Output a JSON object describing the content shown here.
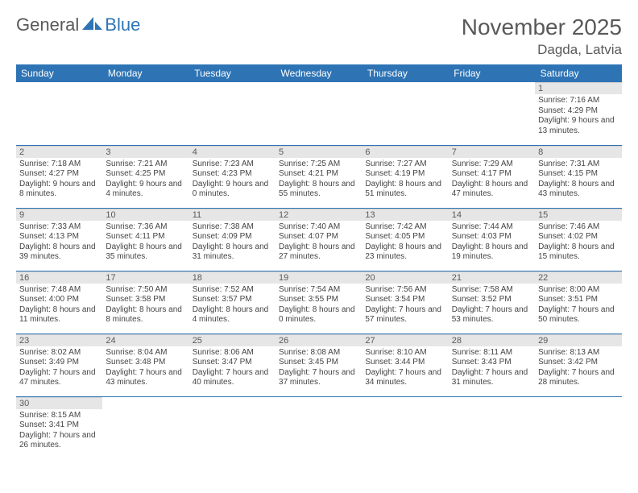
{
  "logo": {
    "part1": "General",
    "part2": "Blue"
  },
  "title": "November 2025",
  "location": "Dagda, Latvia",
  "colors": {
    "header_bg": "#2e74b5",
    "header_fg": "#ffffff",
    "daynum_bg": "#e6e6e6",
    "text": "#595959",
    "cell_border": "#2e74b5"
  },
  "weekdays": [
    "Sunday",
    "Monday",
    "Tuesday",
    "Wednesday",
    "Thursday",
    "Friday",
    "Saturday"
  ],
  "weeks": [
    [
      null,
      null,
      null,
      null,
      null,
      null,
      {
        "n": "1",
        "sr": "Sunrise: 7:16 AM",
        "ss": "Sunset: 4:29 PM",
        "dl": "Daylight: 9 hours and 13 minutes."
      }
    ],
    [
      {
        "n": "2",
        "sr": "Sunrise: 7:18 AM",
        "ss": "Sunset: 4:27 PM",
        "dl": "Daylight: 9 hours and 8 minutes."
      },
      {
        "n": "3",
        "sr": "Sunrise: 7:21 AM",
        "ss": "Sunset: 4:25 PM",
        "dl": "Daylight: 9 hours and 4 minutes."
      },
      {
        "n": "4",
        "sr": "Sunrise: 7:23 AM",
        "ss": "Sunset: 4:23 PM",
        "dl": "Daylight: 9 hours and 0 minutes."
      },
      {
        "n": "5",
        "sr": "Sunrise: 7:25 AM",
        "ss": "Sunset: 4:21 PM",
        "dl": "Daylight: 8 hours and 55 minutes."
      },
      {
        "n": "6",
        "sr": "Sunrise: 7:27 AM",
        "ss": "Sunset: 4:19 PM",
        "dl": "Daylight: 8 hours and 51 minutes."
      },
      {
        "n": "7",
        "sr": "Sunrise: 7:29 AM",
        "ss": "Sunset: 4:17 PM",
        "dl": "Daylight: 8 hours and 47 minutes."
      },
      {
        "n": "8",
        "sr": "Sunrise: 7:31 AM",
        "ss": "Sunset: 4:15 PM",
        "dl": "Daylight: 8 hours and 43 minutes."
      }
    ],
    [
      {
        "n": "9",
        "sr": "Sunrise: 7:33 AM",
        "ss": "Sunset: 4:13 PM",
        "dl": "Daylight: 8 hours and 39 minutes."
      },
      {
        "n": "10",
        "sr": "Sunrise: 7:36 AM",
        "ss": "Sunset: 4:11 PM",
        "dl": "Daylight: 8 hours and 35 minutes."
      },
      {
        "n": "11",
        "sr": "Sunrise: 7:38 AM",
        "ss": "Sunset: 4:09 PM",
        "dl": "Daylight: 8 hours and 31 minutes."
      },
      {
        "n": "12",
        "sr": "Sunrise: 7:40 AM",
        "ss": "Sunset: 4:07 PM",
        "dl": "Daylight: 8 hours and 27 minutes."
      },
      {
        "n": "13",
        "sr": "Sunrise: 7:42 AM",
        "ss": "Sunset: 4:05 PM",
        "dl": "Daylight: 8 hours and 23 minutes."
      },
      {
        "n": "14",
        "sr": "Sunrise: 7:44 AM",
        "ss": "Sunset: 4:03 PM",
        "dl": "Daylight: 8 hours and 19 minutes."
      },
      {
        "n": "15",
        "sr": "Sunrise: 7:46 AM",
        "ss": "Sunset: 4:02 PM",
        "dl": "Daylight: 8 hours and 15 minutes."
      }
    ],
    [
      {
        "n": "16",
        "sr": "Sunrise: 7:48 AM",
        "ss": "Sunset: 4:00 PM",
        "dl": "Daylight: 8 hours and 11 minutes."
      },
      {
        "n": "17",
        "sr": "Sunrise: 7:50 AM",
        "ss": "Sunset: 3:58 PM",
        "dl": "Daylight: 8 hours and 8 minutes."
      },
      {
        "n": "18",
        "sr": "Sunrise: 7:52 AM",
        "ss": "Sunset: 3:57 PM",
        "dl": "Daylight: 8 hours and 4 minutes."
      },
      {
        "n": "19",
        "sr": "Sunrise: 7:54 AM",
        "ss": "Sunset: 3:55 PM",
        "dl": "Daylight: 8 hours and 0 minutes."
      },
      {
        "n": "20",
        "sr": "Sunrise: 7:56 AM",
        "ss": "Sunset: 3:54 PM",
        "dl": "Daylight: 7 hours and 57 minutes."
      },
      {
        "n": "21",
        "sr": "Sunrise: 7:58 AM",
        "ss": "Sunset: 3:52 PM",
        "dl": "Daylight: 7 hours and 53 minutes."
      },
      {
        "n": "22",
        "sr": "Sunrise: 8:00 AM",
        "ss": "Sunset: 3:51 PM",
        "dl": "Daylight: 7 hours and 50 minutes."
      }
    ],
    [
      {
        "n": "23",
        "sr": "Sunrise: 8:02 AM",
        "ss": "Sunset: 3:49 PM",
        "dl": "Daylight: 7 hours and 47 minutes."
      },
      {
        "n": "24",
        "sr": "Sunrise: 8:04 AM",
        "ss": "Sunset: 3:48 PM",
        "dl": "Daylight: 7 hours and 43 minutes."
      },
      {
        "n": "25",
        "sr": "Sunrise: 8:06 AM",
        "ss": "Sunset: 3:47 PM",
        "dl": "Daylight: 7 hours and 40 minutes."
      },
      {
        "n": "26",
        "sr": "Sunrise: 8:08 AM",
        "ss": "Sunset: 3:45 PM",
        "dl": "Daylight: 7 hours and 37 minutes."
      },
      {
        "n": "27",
        "sr": "Sunrise: 8:10 AM",
        "ss": "Sunset: 3:44 PM",
        "dl": "Daylight: 7 hours and 34 minutes."
      },
      {
        "n": "28",
        "sr": "Sunrise: 8:11 AM",
        "ss": "Sunset: 3:43 PM",
        "dl": "Daylight: 7 hours and 31 minutes."
      },
      {
        "n": "29",
        "sr": "Sunrise: 8:13 AM",
        "ss": "Sunset: 3:42 PM",
        "dl": "Daylight: 7 hours and 28 minutes."
      }
    ],
    [
      {
        "n": "30",
        "sr": "Sunrise: 8:15 AM",
        "ss": "Sunset: 3:41 PM",
        "dl": "Daylight: 7 hours and 26 minutes."
      },
      null,
      null,
      null,
      null,
      null,
      null
    ]
  ]
}
